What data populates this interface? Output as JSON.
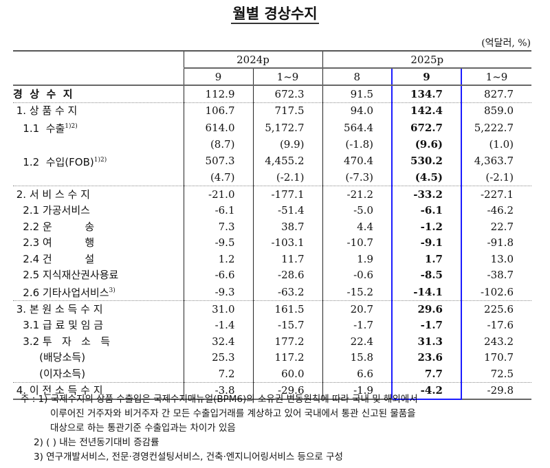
{
  "title": "월별 경상수지",
  "unit": "(억달러, %)",
  "header": {
    "years": [
      "2024p",
      "2025p"
    ],
    "months": [
      "9",
      "1~9",
      "8",
      "9",
      "1~9"
    ]
  },
  "rows": [
    {
      "label": "경  상  수  지",
      "sup": "",
      "values": [
        "112.9",
        "672.3",
        "91.5",
        "134.7",
        "827.7"
      ],
      "style": "total"
    },
    {
      "label": " 1. 상 품 수 지",
      "sup": "",
      "values": [
        "106.7",
        "717.5",
        "94.0",
        "142.4",
        "859.0"
      ]
    },
    {
      "label": "   1.1  수출",
      "sup": "1)2)",
      "values": [
        "614.0",
        "5,172.7",
        "564.4",
        "672.7",
        "5,222.7"
      ]
    },
    {
      "label": "",
      "sup": "",
      "values": [
        "(8.7)",
        "(9.9)",
        "(-1.8)",
        "(9.6)",
        "(1.0)"
      ]
    },
    {
      "label": "   1.2  수입(FOB)",
      "sup": "1)2)",
      "values": [
        "507.3",
        "4,455.2",
        "470.4",
        "530.2",
        "4,363.7"
      ]
    },
    {
      "label": "",
      "sup": "",
      "values": [
        "(4.7)",
        "(-2.1)",
        "(-7.3)",
        "(4.5)",
        "(-2.1)"
      ]
    },
    {
      "label": " 2. 서 비 스 수 지",
      "sup": "",
      "values": [
        "-21.0",
        "-177.1",
        "-21.2",
        "-33.2",
        "-227.1"
      ],
      "section": true
    },
    {
      "label": "   2.1 가공서비스",
      "sup": "",
      "values": [
        "-6.1",
        "-51.4",
        "-5.0",
        "-6.1",
        "-46.2"
      ]
    },
    {
      "label": "   2.2 운          송",
      "sup": "",
      "values": [
        "7.3",
        "38.7",
        "4.4",
        "-1.2",
        "22.7"
      ]
    },
    {
      "label": "   2.3 여          행",
      "sup": "",
      "values": [
        "-9.5",
        "-103.1",
        "-10.7",
        "-9.1",
        "-91.8"
      ]
    },
    {
      "label": "   2.4 건          설",
      "sup": "",
      "values": [
        "1.2",
        "11.7",
        "1.9",
        "1.7",
        "13.0"
      ]
    },
    {
      "label": "   2.5 지식재산권사용료",
      "sup": "",
      "values": [
        "-6.6",
        "-28.6",
        "-0.6",
        "-8.5",
        "-38.7"
      ]
    },
    {
      "label": "   2.6 기타사업서비스",
      "sup": "3)",
      "values": [
        "-9.3",
        "-63.2",
        "-15.2",
        "-14.1",
        "-102.6"
      ]
    },
    {
      "label": " 3. 본 원 소 득 수 지",
      "sup": "",
      "values": [
        "31.0",
        "161.5",
        "20.7",
        "29.6",
        "225.6"
      ],
      "section": true
    },
    {
      "label": "   3.1 급 료 및 임 금",
      "sup": "",
      "values": [
        "-1.4",
        "-15.7",
        "-1.7",
        "-1.7",
        "-17.6"
      ]
    },
    {
      "label": "   3.2 투   자   소   득",
      "sup": "",
      "values": [
        "32.4",
        "177.2",
        "22.4",
        "31.3",
        "243.2"
      ]
    },
    {
      "label": "        (배당소득)",
      "sup": "",
      "values": [
        "25.3",
        "117.2",
        "15.8",
        "23.6",
        "170.7"
      ]
    },
    {
      "label": "        (이자소득)",
      "sup": "",
      "values": [
        "7.2",
        "60.0",
        "6.6",
        "7.7",
        "72.5"
      ]
    },
    {
      "label": " 4. 이 전 소 득 수 지",
      "sup": "",
      "values": [
        "-3.8",
        "-29.6",
        "-1.9",
        "-4.2",
        "-29.8"
      ],
      "section": true
    }
  ],
  "notes": [
    "주 : 1) 국제수지의 상품 수출입은 국제수지매뉴얼(BPM6)의 소유권 변동원칙에 따라 국내 및 해외에서",
    "이루어진 거주자와 비거주자 간 모든 수출입거래를 계상하고 있어 국내에서 통관 신고된 물품을",
    "대상으로 하는 통관기준 수출입과는 차이가 있음",
    "2) (   ) 내는 전년동기대비 증감률",
    "3) 연구개발서비스, 전문·경영컨설팅서비스, 건축·엔지니어링서비스 등으로 구성"
  ],
  "highlight_color": "#1a1aff"
}
